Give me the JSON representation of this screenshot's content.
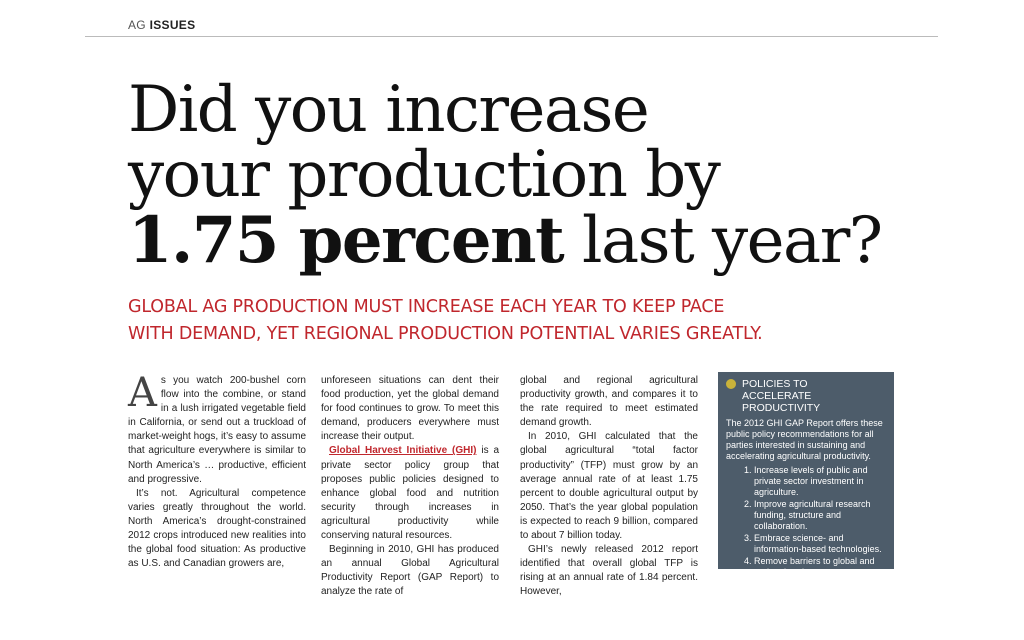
{
  "header": {
    "section": "AG",
    "section_bold": "ISSUES"
  },
  "headline": {
    "line1": "Did you increase",
    "line2": "your production by",
    "line3_bold": "1.75 percent",
    "line3_rest": "last year?"
  },
  "subhead": {
    "line1": "GLOBAL AG PRODUCTION MUST INCREASE EACH YEAR TO KEEP PACE",
    "line2": "WITH DEMAND, YET REGIONAL PRODUCTION POTENTIAL VARIES GREATLY."
  },
  "article": {
    "drop_cap": "A",
    "columns": [
      {
        "paragraphs": [
          "s you watch 200-bushel corn flow into the combine, or stand in a lush irrigated vegetable field in California, or send out a truckload of market-weight hogs, it’s easy to assume that agriculture everywhere is similar to North America’s … productive, efficient and progressive.",
          "It’s not. Agricultural competence varies greatly throughout the world. North America’s drought-constrained 2012 crops introduced new realities into the global food situation: As productive as U.S. and Canadian growers are,"
        ]
      },
      {
        "paragraphs": [
          "unforeseen situations can dent their food production, yet the global demand for food continues to grow. To meet this demand, producers everywhere must increase their output.",
          {
            "link": "Global Harvest Initiative (GHI)",
            "text": "is a private sector policy group that proposes public policies designed to enhance global food and nutrition security through increases in agricultural productivity while conserving natural resources."
          },
          "Beginning in 2010, GHI has produced an annual Global Agricultural Productivity Report (GAP Report) to analyze the rate of"
        ]
      },
      {
        "paragraphs": [
          "global and regional agricultural productivity growth, and compares it to the rate required to meet estimated demand growth.",
          "In 2010, GHI calculated that the global agricultural “total factor productivity” (TFP) must grow by an average annual rate of at least 1.75 percent to double agricultural output by 2050. That’s the year global population is expected to reach 9 billion, compared to about 7 billion today.",
          "GHI’s newly released 2012 report identified that overall global TFP is rising at an annual rate of 1.84 percent. However,"
        ]
      }
    ]
  },
  "sidebar": {
    "title_line1": "POLICIES TO",
    "title_line2": "ACCELERATE PRODUCTIVITY",
    "intro": "The 2012 GHI GAP Report offers these public policy recommendations for all parties interested in sustaining and accelerating agricultural productivity.",
    "items": [
      "Increase levels of public and private sector investment in agriculture.",
      "Improve agricultural research funding, structure and collaboration.",
      "Embrace science- and information-based technologies.",
      "Remove barriers to global and regional trade."
    ]
  }
}
